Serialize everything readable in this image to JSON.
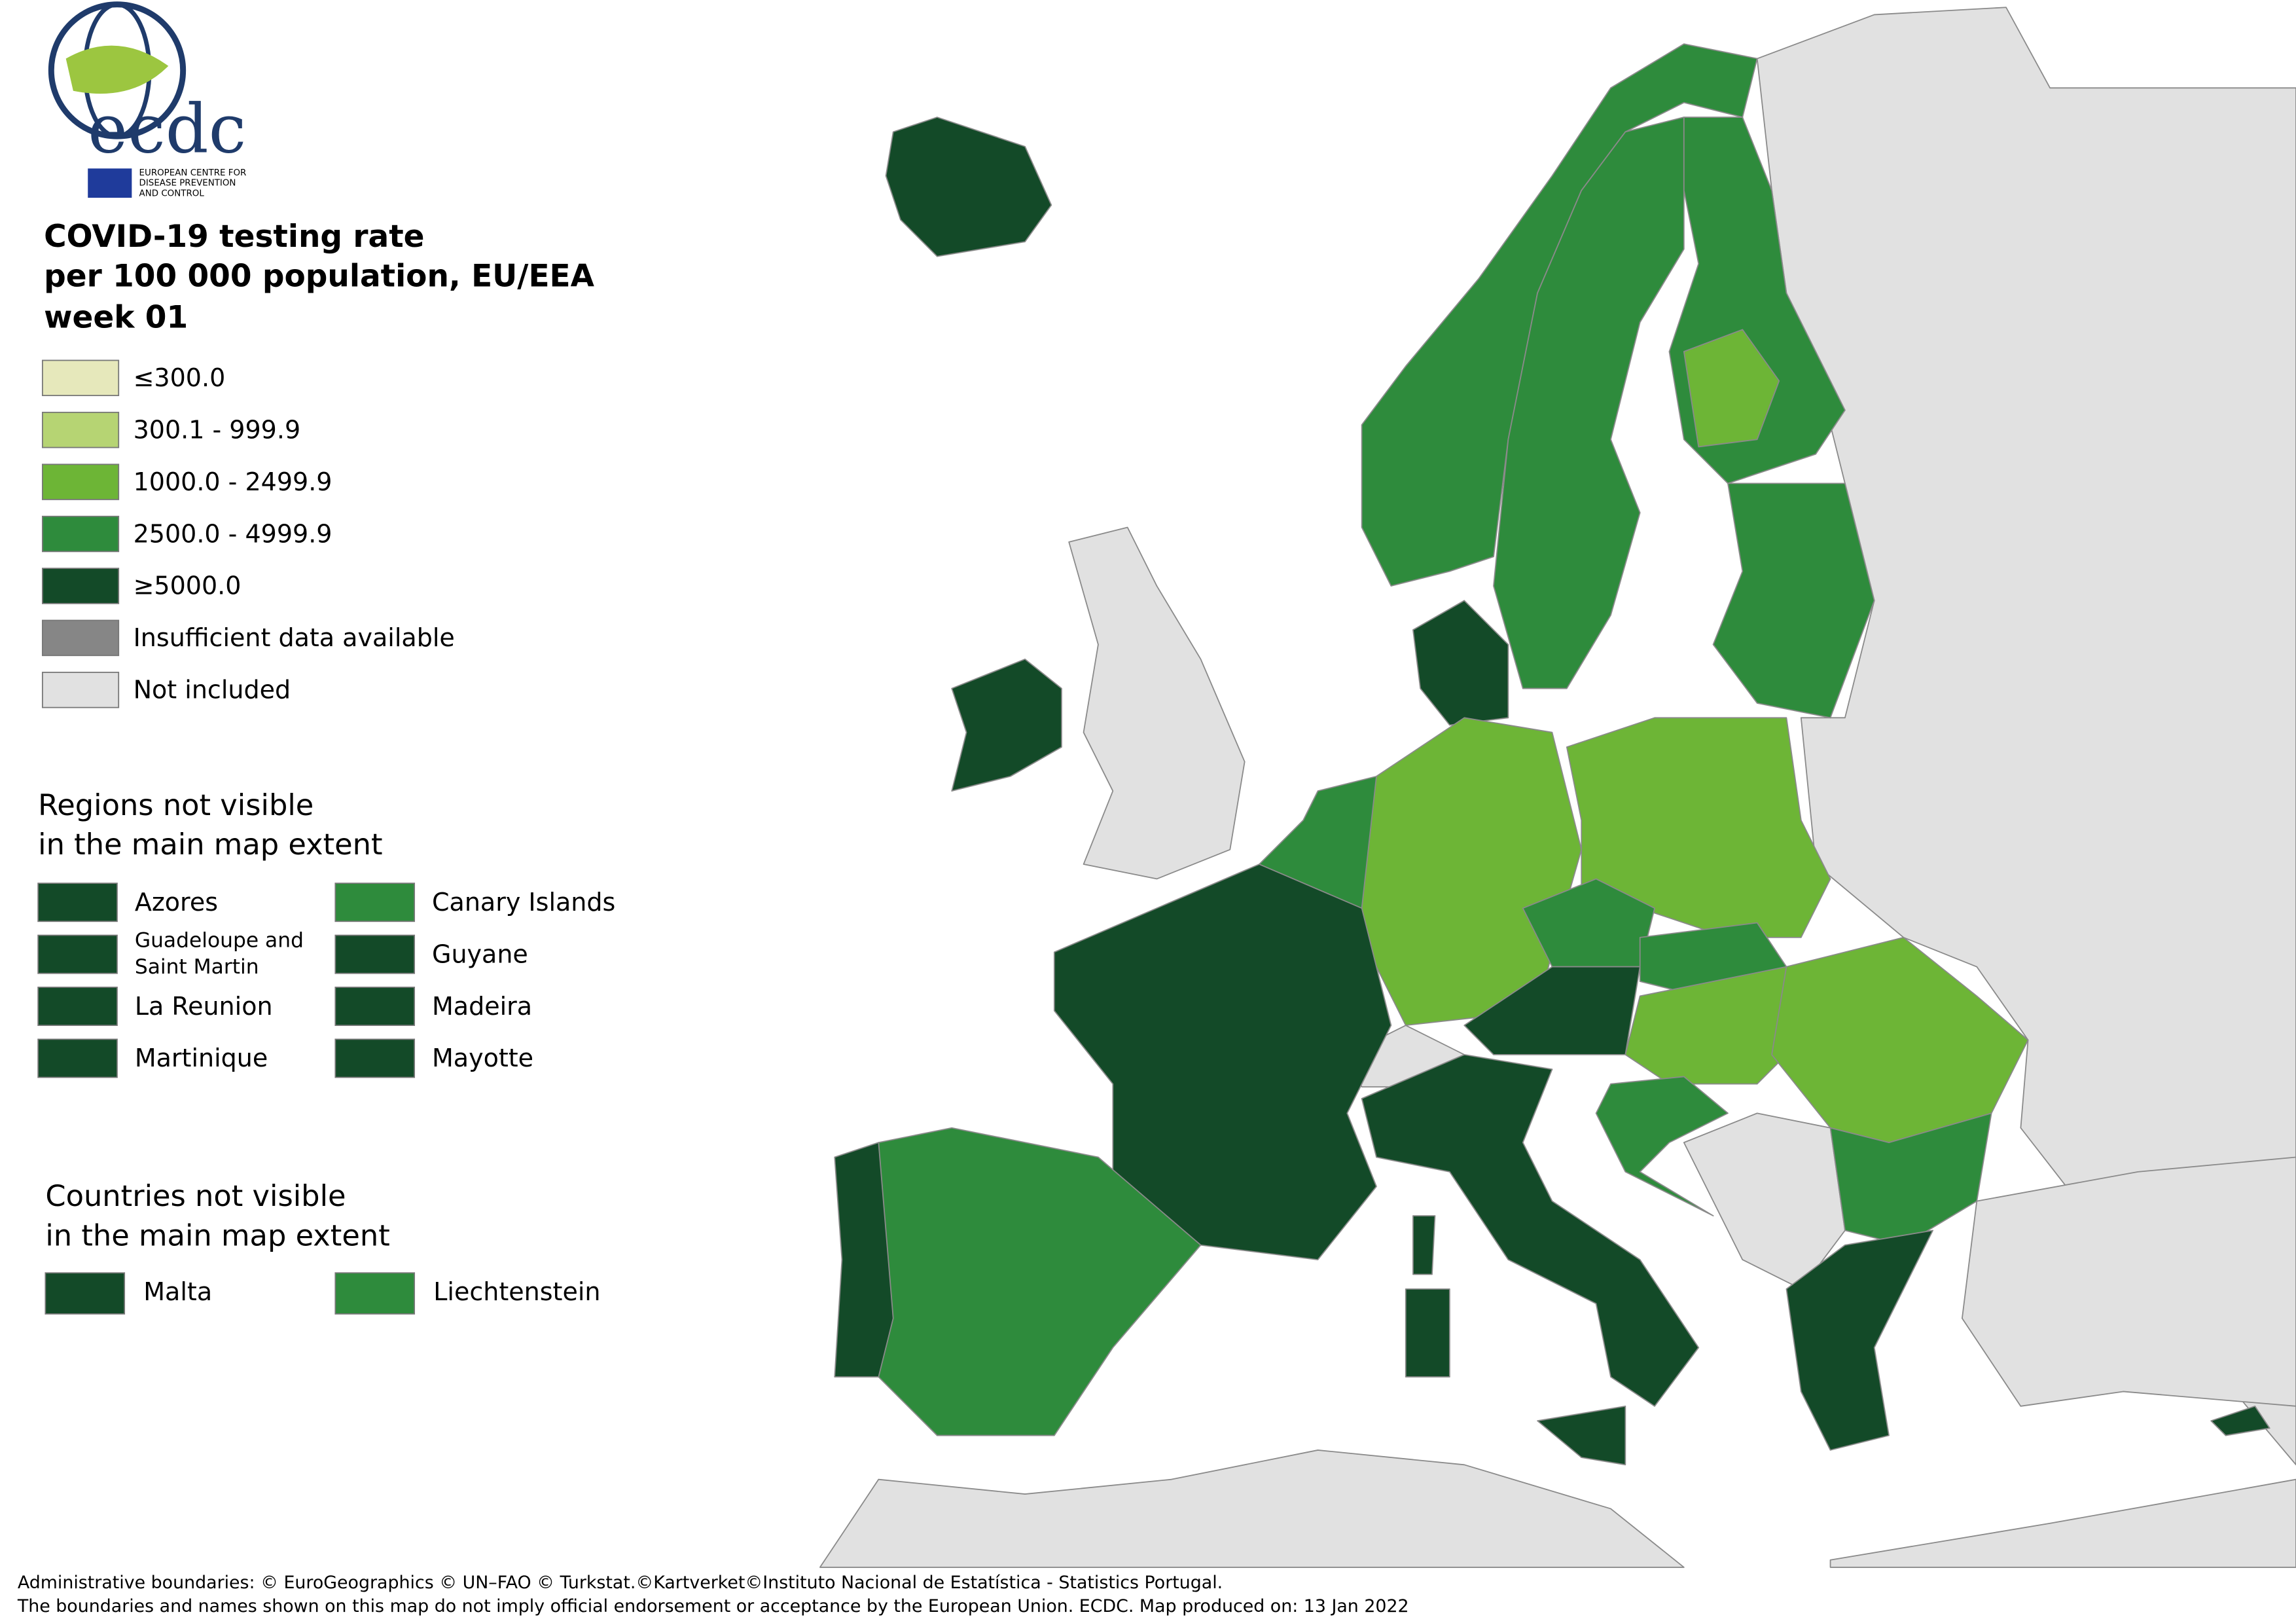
{
  "logo": {
    "text": "ecdc",
    "subtitle": [
      "EUROPEAN CENTRE FOR",
      "DISEASE PREVENTION",
      "AND CONTROL"
    ]
  },
  "title": [
    "COVID-19 testing rate",
    "per 100 000 population, EU/EEA",
    "week 01"
  ],
  "legend": [
    {
      "label": "≤300.0",
      "color": "#e6e8bb"
    },
    {
      "label": "300.1 - 999.9",
      "color": "#b6d473"
    },
    {
      "label": "1000.0 - 2499.9",
      "color": "#6db536"
    },
    {
      "label": "2500.0 - 4999.9",
      "color": "#2e8b3c"
    },
    {
      "label": "≥5000.0",
      "color": "#134a28"
    },
    {
      "label": "Insufficient data available",
      "color": "#868686"
    },
    {
      "label": "Not included",
      "color": "#e1e1e1"
    }
  ],
  "regions": {
    "title": [
      "Regions not visible",
      "in the main map extent"
    ],
    "items": [
      {
        "label": "Azores",
        "color": "#134a28"
      },
      {
        "label": "Guadeloupe and Saint Martin",
        "color": "#134a28"
      },
      {
        "label": "La Reunion",
        "color": "#134a28"
      },
      {
        "label": "Martinique",
        "color": "#134a28"
      },
      {
        "label": "Canary Islands",
        "color": "#2e8b3c"
      },
      {
        "label": "Guyane",
        "color": "#134a28"
      },
      {
        "label": "Madeira",
        "color": "#134a28"
      },
      {
        "label": "Mayotte",
        "color": "#134a28"
      }
    ]
  },
  "countries": {
    "title": [
      "Countries not visible",
      "in the main map extent"
    ],
    "items": [
      {
        "label": "Malta",
        "color": "#134a28"
      },
      {
        "label": "Liechtenstein",
        "color": "#2e8b3c"
      }
    ]
  },
  "footer": [
    "Administrative boundaries: © EuroGeographics © UN–FAO © Turkstat.©Kartverket©Instituto Nacional de Estatística - Statistics Portugal.",
    "The boundaries and names shown on this map do not imply official endorsement or acceptance by the European Union. ECDC. Map produced on: 13 Jan 2022"
  ]
}
